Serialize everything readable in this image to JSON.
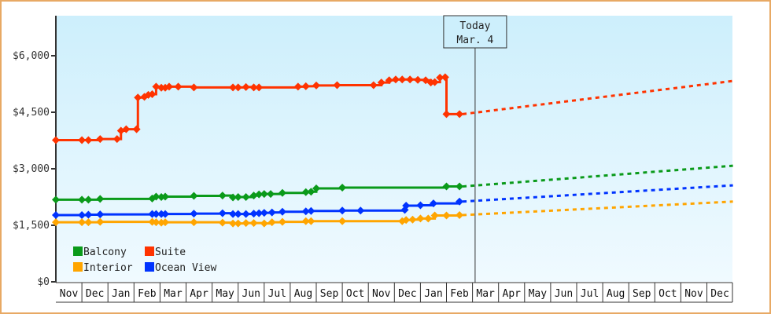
{
  "chart_data": {
    "type": "line",
    "title": "",
    "xlabel": "",
    "ylabel": "",
    "ylim": [
      0,
      7000
    ],
    "yticks": [
      {
        "value": 0,
        "label": "$0"
      },
      {
        "value": 1500,
        "label": "$1,500"
      },
      {
        "value": 3000,
        "label": "$3,000"
      },
      {
        "value": 4500,
        "label": "$4,500"
      },
      {
        "value": 6000,
        "label": "$6,000"
      }
    ],
    "x_months": [
      "Nov",
      "Dec",
      "Jan",
      "Feb",
      "Mar",
      "Apr",
      "May",
      "Jun",
      "Jul",
      "Aug",
      "Sep",
      "Oct",
      "Nov",
      "Dec",
      "Jan",
      "Feb",
      "Mar",
      "Apr",
      "May",
      "Jun",
      "Jul",
      "Aug",
      "Sep",
      "Oct",
      "Nov",
      "Dec"
    ],
    "today_marker": {
      "line1": "Today",
      "line2": "Mar. 4",
      "month_index": 16.1
    },
    "legend": [
      {
        "name": "Balcony",
        "color": "#0a9a1a"
      },
      {
        "name": "Suite",
        "color": "#ff3300"
      },
      {
        "name": "Interior",
        "color": "#ffa500"
      },
      {
        "name": "Ocean View",
        "color": "#0033ff"
      }
    ],
    "series": [
      {
        "name": "Suite",
        "color": "#ff3300",
        "points": [
          [
            0.0,
            3760
          ],
          [
            1.0,
            3760
          ],
          [
            1.25,
            3760
          ],
          [
            1.7,
            3790
          ],
          [
            2.35,
            3790
          ],
          [
            2.5,
            4010
          ],
          [
            2.7,
            4050
          ],
          [
            3.1,
            4050
          ],
          [
            3.15,
            4890
          ],
          [
            3.4,
            4910
          ],
          [
            3.55,
            4960
          ],
          [
            3.7,
            4980
          ],
          [
            3.85,
            5180
          ],
          [
            4.05,
            5150
          ],
          [
            4.2,
            5150
          ],
          [
            4.35,
            5180
          ],
          [
            4.7,
            5180
          ],
          [
            5.3,
            5160
          ],
          [
            6.8,
            5160
          ],
          [
            7.0,
            5160
          ],
          [
            7.3,
            5170
          ],
          [
            7.6,
            5160
          ],
          [
            7.8,
            5160
          ],
          [
            9.3,
            5180
          ],
          [
            9.6,
            5190
          ],
          [
            10.0,
            5210
          ],
          [
            10.8,
            5220
          ],
          [
            12.2,
            5220
          ],
          [
            12.5,
            5290
          ],
          [
            12.8,
            5350
          ],
          [
            13.05,
            5370
          ],
          [
            13.3,
            5370
          ],
          [
            13.6,
            5370
          ],
          [
            13.9,
            5360
          ],
          [
            14.2,
            5350
          ],
          [
            14.4,
            5290
          ],
          [
            14.55,
            5300
          ],
          [
            14.75,
            5420
          ],
          [
            14.95,
            5430
          ],
          [
            15.0,
            4450
          ],
          [
            15.5,
            4450
          ]
        ],
        "forecast": [
          [
            15.5,
            4450
          ],
          [
            26.0,
            5330
          ]
        ]
      },
      {
        "name": "Balcony",
        "color": "#0a9a1a",
        "points": [
          [
            0.0,
            2180
          ],
          [
            1.0,
            2180
          ],
          [
            1.25,
            2180
          ],
          [
            1.7,
            2200
          ],
          [
            3.7,
            2210
          ],
          [
            3.85,
            2260
          ],
          [
            4.05,
            2250
          ],
          [
            4.2,
            2260
          ],
          [
            5.3,
            2280
          ],
          [
            6.4,
            2290
          ],
          [
            6.8,
            2240
          ],
          [
            7.0,
            2250
          ],
          [
            7.3,
            2250
          ],
          [
            7.6,
            2290
          ],
          [
            7.8,
            2320
          ],
          [
            8.0,
            2330
          ],
          [
            8.25,
            2330
          ],
          [
            8.7,
            2360
          ],
          [
            9.6,
            2380
          ],
          [
            9.8,
            2390
          ],
          [
            10.0,
            2480
          ],
          [
            11.0,
            2500
          ],
          [
            15.0,
            2530
          ],
          [
            15.5,
            2530
          ]
        ],
        "forecast": [
          [
            15.5,
            2530
          ],
          [
            26.0,
            3080
          ]
        ]
      },
      {
        "name": "Ocean View",
        "color": "#0033ff",
        "points": [
          [
            0.0,
            1770
          ],
          [
            1.0,
            1770
          ],
          [
            1.25,
            1780
          ],
          [
            1.7,
            1790
          ],
          [
            3.7,
            1800
          ],
          [
            3.85,
            1800
          ],
          [
            4.05,
            1800
          ],
          [
            4.2,
            1800
          ],
          [
            5.3,
            1810
          ],
          [
            6.4,
            1820
          ],
          [
            6.8,
            1800
          ],
          [
            7.0,
            1800
          ],
          [
            7.3,
            1800
          ],
          [
            7.6,
            1810
          ],
          [
            7.8,
            1820
          ],
          [
            8.0,
            1830
          ],
          [
            8.3,
            1840
          ],
          [
            8.7,
            1860
          ],
          [
            9.6,
            1870
          ],
          [
            9.8,
            1880
          ],
          [
            11.0,
            1890
          ],
          [
            11.7,
            1890
          ],
          [
            13.4,
            1910
          ],
          [
            13.45,
            2020
          ],
          [
            14.0,
            2030
          ],
          [
            14.5,
            2080
          ],
          [
            15.5,
            2130
          ]
        ],
        "forecast": [
          [
            15.5,
            2130
          ],
          [
            26.0,
            2560
          ]
        ]
      },
      {
        "name": "Interior",
        "color": "#ffa500",
        "points": [
          [
            0.0,
            1580
          ],
          [
            1.0,
            1580
          ],
          [
            1.25,
            1580
          ],
          [
            1.7,
            1590
          ],
          [
            3.7,
            1590
          ],
          [
            3.85,
            1580
          ],
          [
            4.05,
            1570
          ],
          [
            4.2,
            1580
          ],
          [
            5.3,
            1580
          ],
          [
            6.4,
            1570
          ],
          [
            6.8,
            1550
          ],
          [
            7.0,
            1550
          ],
          [
            7.3,
            1560
          ],
          [
            7.6,
            1560
          ],
          [
            8.0,
            1550
          ],
          [
            8.3,
            1580
          ],
          [
            8.7,
            1590
          ],
          [
            9.6,
            1610
          ],
          [
            9.8,
            1610
          ],
          [
            11.0,
            1610
          ],
          [
            13.3,
            1610
          ],
          [
            13.45,
            1640
          ],
          [
            13.7,
            1650
          ],
          [
            14.0,
            1680
          ],
          [
            14.3,
            1680
          ],
          [
            14.55,
            1760
          ],
          [
            15.0,
            1760
          ],
          [
            15.5,
            1770
          ]
        ],
        "forecast": [
          [
            15.5,
            1770
          ],
          [
            26.0,
            2130
          ]
        ]
      }
    ],
    "grid": false,
    "legend_position": "lower-left inside plot"
  }
}
